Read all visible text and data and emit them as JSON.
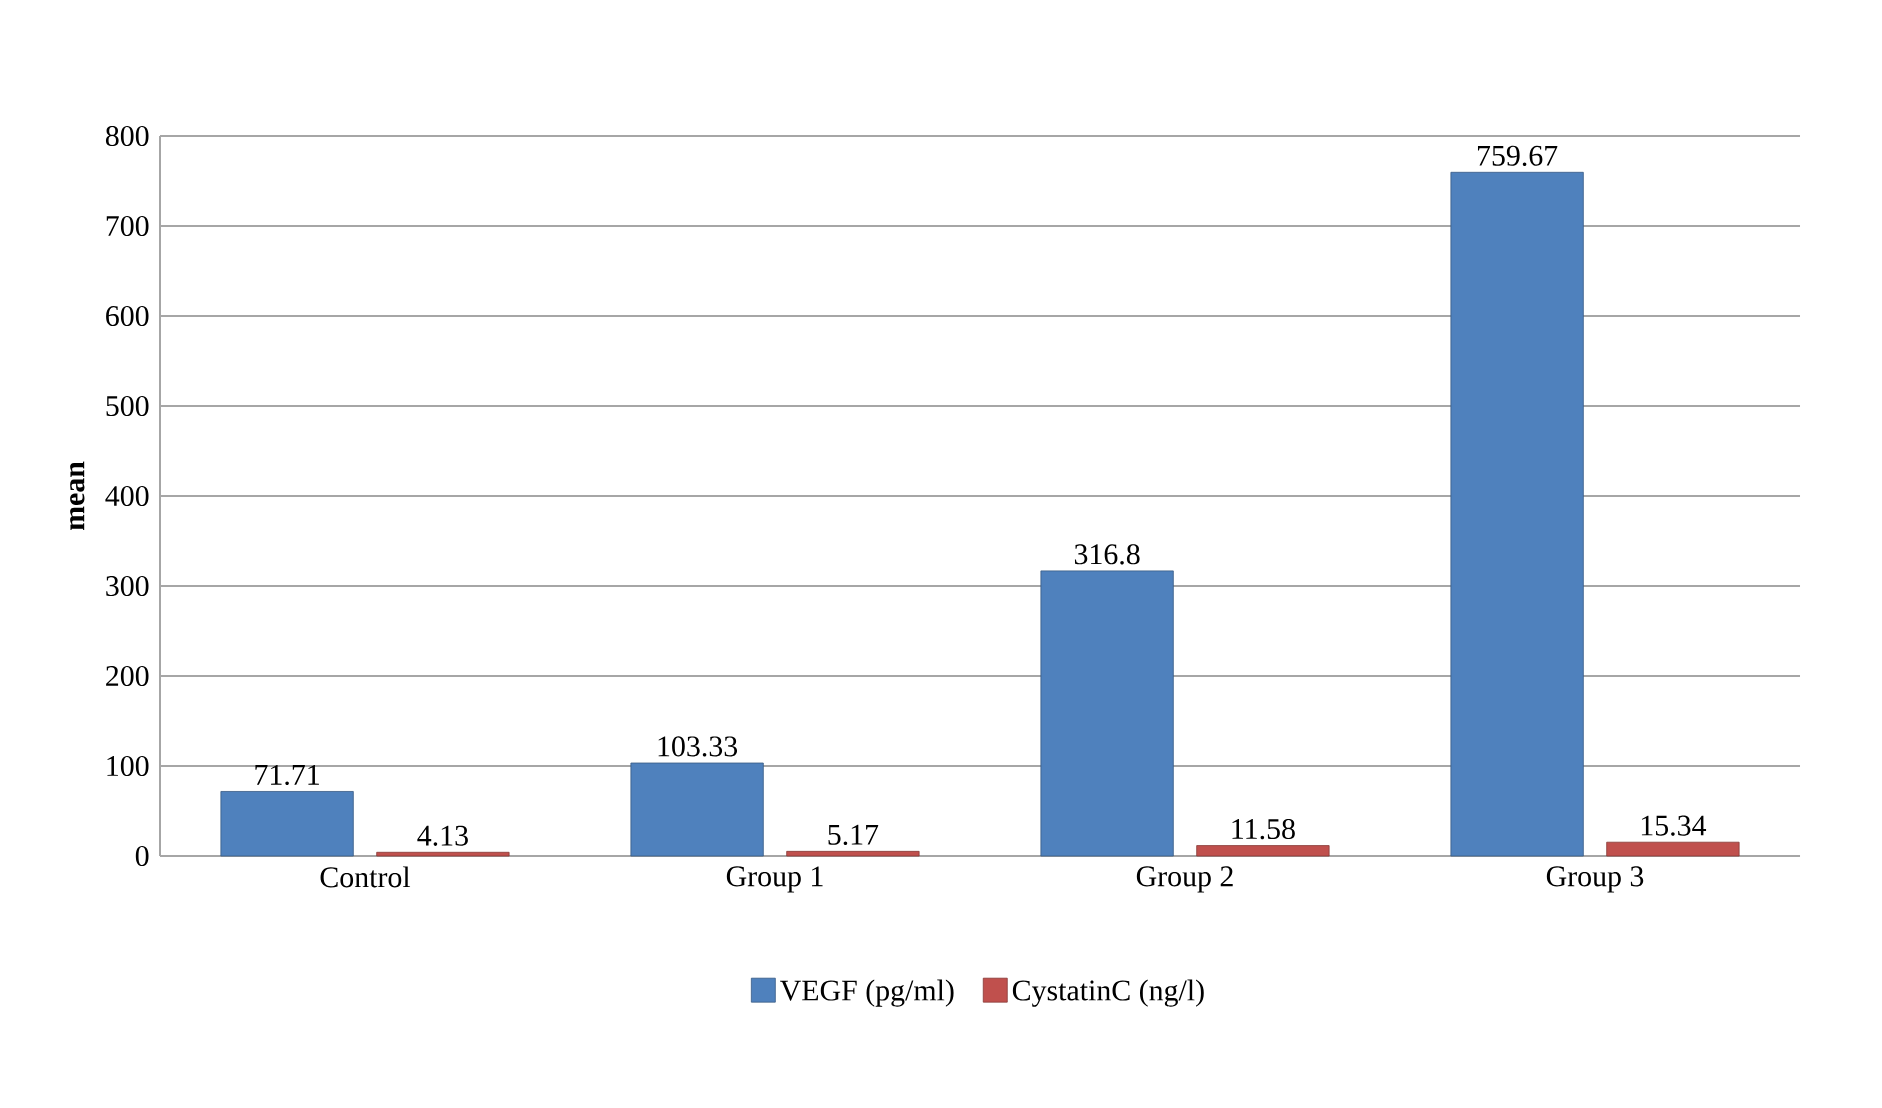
{
  "chart_data": {
    "type": "bar",
    "ylabel": "mean",
    "categories": [
      "Control",
      "Group 1",
      "Group 2",
      "Group 3"
    ],
    "series": [
      {
        "name": "VEGF (pg/ml)",
        "color": "#4f81bd",
        "values": [
          71.71,
          103.33,
          316.8,
          759.67
        ]
      },
      {
        "name": "CystatinC (ng/l)",
        "color": "#c0504d",
        "values": [
          4.13,
          5.17,
          11.58,
          15.34
        ]
      }
    ],
    "ylim": [
      0,
      800
    ],
    "yticks": [
      0,
      100,
      200,
      300,
      400,
      500,
      600,
      700,
      800
    ],
    "grid": "y",
    "legend": "bottom",
    "data_labels": true
  }
}
